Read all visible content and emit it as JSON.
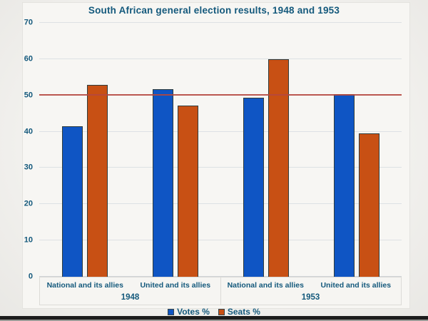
{
  "title": "South African general election results, 1948 and 1953",
  "chart_data": {
    "type": "bar",
    "title": "South African general election results, 1948 and 1953",
    "categories": [
      "National and its allies",
      "United and its allies",
      "National and its allies",
      "United and its allies"
    ],
    "group_labels": [
      {
        "label": "1948",
        "spans_categories": [
          0,
          1
        ]
      },
      {
        "label": "1953",
        "spans_categories": [
          2,
          3
        ]
      }
    ],
    "series": [
      {
        "name": "Votes %",
        "color": "#0f55c4",
        "values": [
          41.5,
          51.7,
          49.3,
          50.4
        ]
      },
      {
        "name": "Seats %",
        "color": "#c85014",
        "values": [
          52.8,
          47.2,
          60,
          39.5
        ]
      }
    ],
    "ylim": [
      0,
      70
    ],
    "yticks": [
      0,
      10,
      20,
      30,
      40,
      50,
      60,
      70
    ],
    "reference_line": {
      "value": 50,
      "color": "#b5473e"
    },
    "grid": true,
    "legend_position": "bottom",
    "text_color": "#14597c",
    "bar_border_color": "#2f3c3c",
    "gridline_color": "#dde1e4",
    "background_color": "#f2f1ee"
  }
}
